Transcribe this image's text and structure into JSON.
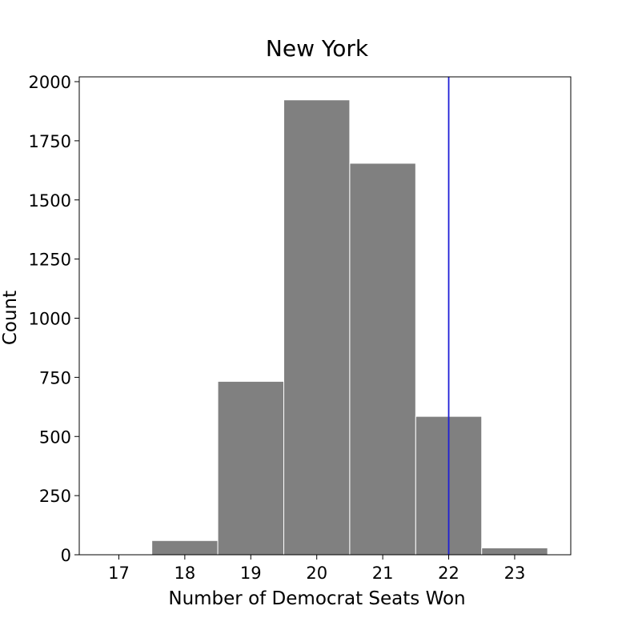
{
  "chart_data": {
    "type": "bar",
    "title": "New York",
    "xlabel": "Number of Democrat Seats Won",
    "ylabel": "Count",
    "categories": [
      "17",
      "18",
      "19",
      "20",
      "21",
      "22",
      "23"
    ],
    "values": [
      2,
      60,
      733,
      1923,
      1655,
      585,
      29
    ],
    "ylim": [
      0,
      2020
    ],
    "yticks": [
      "0",
      "250",
      "500",
      "750",
      "1000",
      "1250",
      "1500",
      "1750",
      "2000"
    ],
    "reference_line": {
      "x": 22,
      "color": "#1f1fd6"
    },
    "bar_color": "#808080",
    "grid": false
  }
}
